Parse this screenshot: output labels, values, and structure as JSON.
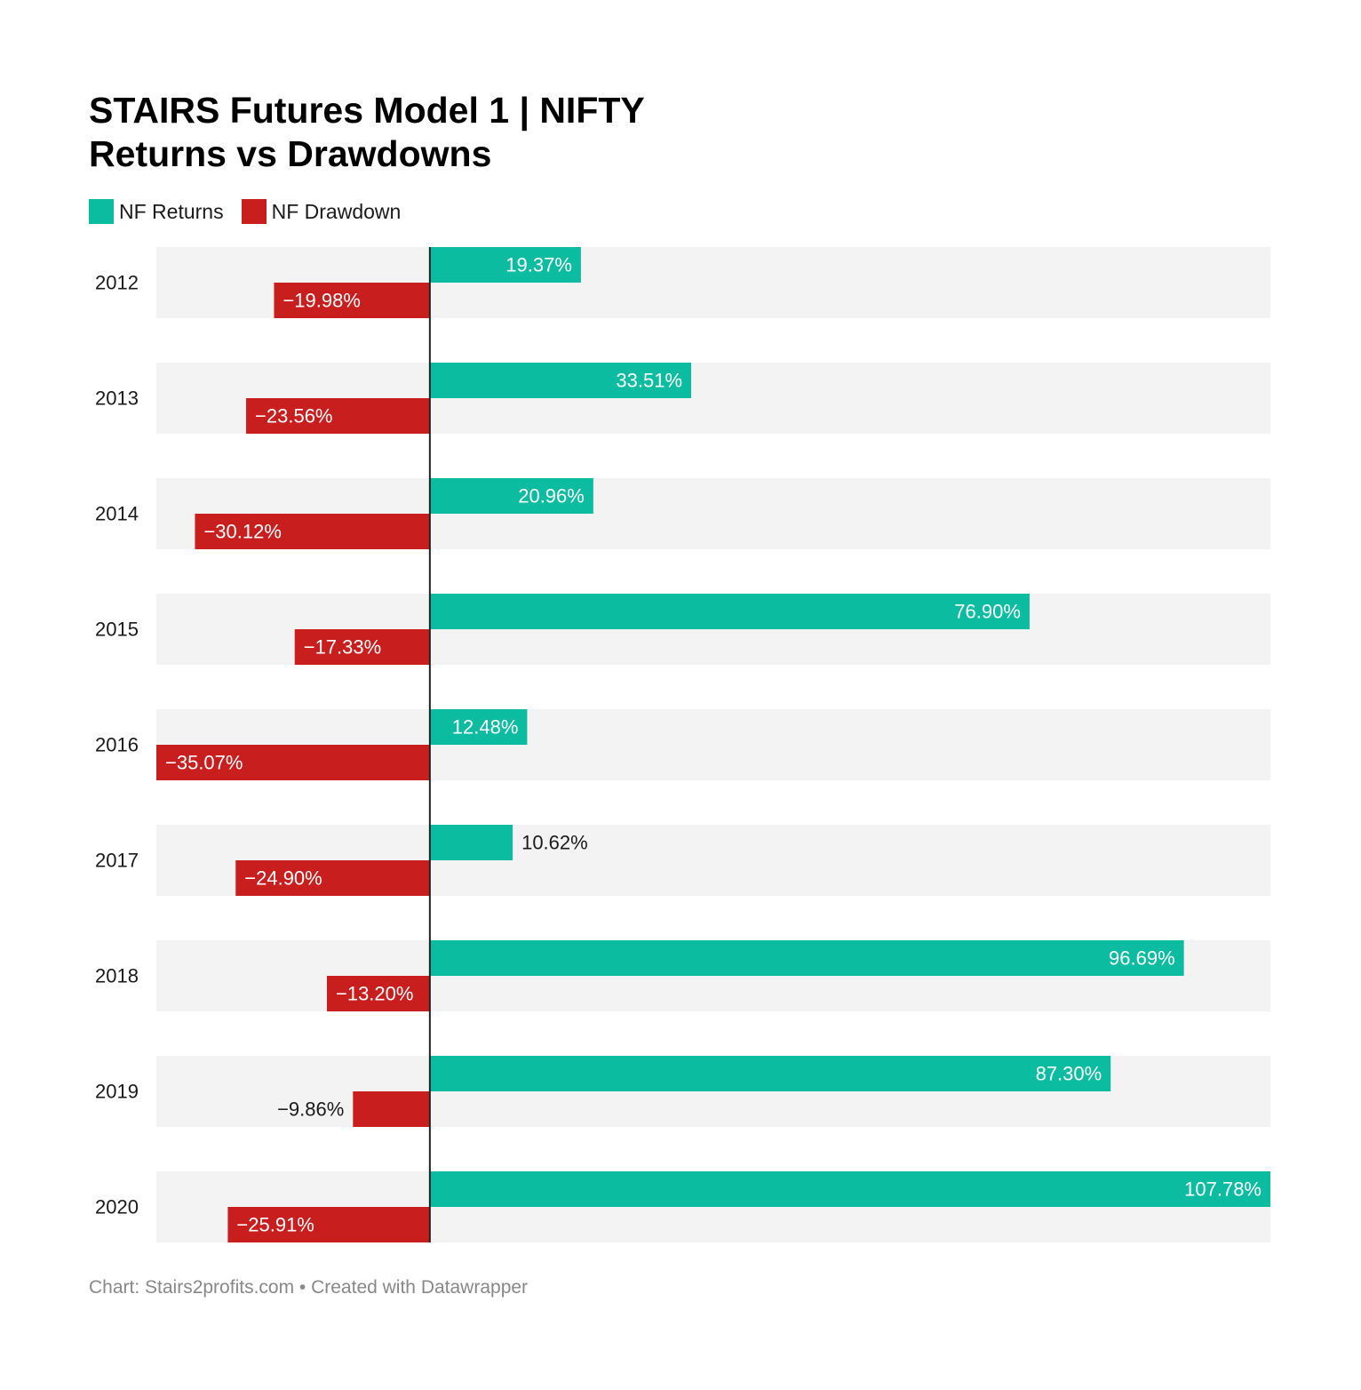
{
  "chart_data": {
    "type": "bar",
    "orientation": "horizontal",
    "title_line1": "STAIRS Futures Model 1 | NIFTY",
    "title_line2": "Returns vs Drawdowns",
    "categories": [
      "2012",
      "2013",
      "2014",
      "2015",
      "2016",
      "2017",
      "2018",
      "2019",
      "2020"
    ],
    "series": [
      {
        "name": "NF Returns",
        "color": "#0bbca1",
        "values": [
          19.37,
          33.51,
          20.96,
          76.9,
          12.48,
          10.62,
          96.69,
          87.3,
          107.78
        ],
        "labels": [
          "19.37%",
          "33.51%",
          "20.96%",
          "76.90%",
          "12.48%",
          "10.62%",
          "96.69%",
          "87.30%",
          "107.78%"
        ]
      },
      {
        "name": "NF Drawdown",
        "color": "#c81e1e",
        "values": [
          -19.98,
          -23.56,
          -30.12,
          -17.33,
          -35.07,
          -24.9,
          -13.2,
          -9.86,
          -25.91
        ],
        "labels": [
          "−19.98%",
          "−23.56%",
          "−30.12%",
          "−17.33%",
          "−35.07%",
          "−24.90%",
          "−13.20%",
          "−9.86%",
          "−25.91%"
        ]
      }
    ],
    "xlim": [
      -35.07,
      107.78
    ],
    "xlabel": "",
    "ylabel": "",
    "grid": false,
    "legend_position": "top-left",
    "source": "Chart: Stairs2profits.com • Created with Datawrapper"
  }
}
